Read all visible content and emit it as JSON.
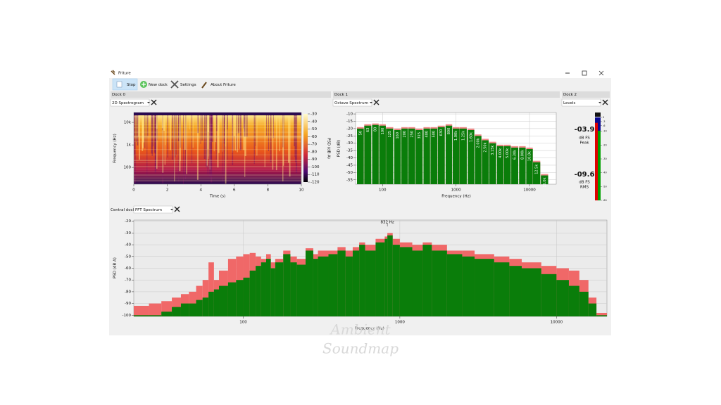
{
  "window": {
    "title": "Friture"
  },
  "toolbar": [
    "Stop",
    "New dock",
    "Settings",
    "About Friture"
  ],
  "dock0": {
    "title": "Dock 0",
    "view": "2D Spectrogram",
    "chart": {
      "type": "spectrogram",
      "xlabel": "Time (s)",
      "ylabel": "Frequency (Hz)",
      "xlim": [
        0,
        10
      ],
      "xticks": [
        0,
        2,
        4,
        6,
        8,
        10
      ],
      "ylim": [
        18,
        27500
      ],
      "ylog": true,
      "yticks": [
        {
          "value": 10000,
          "label": "10k"
        },
        {
          "value": 1000,
          "label": "1k"
        },
        100
      ],
      "colorbar": {
        "label": "PSD (dB A)",
        "lim": [
          -30,
          -120
        ],
        "ticks": [
          -30,
          -40,
          -50,
          -60,
          -70,
          -80,
          -90,
          -100,
          -110,
          -120
        ]
      }
    }
  },
  "dock1": {
    "title": "Dock 1",
    "view": "Octave Spectrum",
    "chart": {
      "type": "bar",
      "xlabel": "Frequency (Hz)",
      "ylabel": "PSD (dB)",
      "grid": true,
      "xlog": true,
      "xlim": [
        43,
        23100
      ],
      "xticks": [
        100,
        1000,
        10000
      ],
      "ylim": [
        -58,
        -9
      ],
      "yticks": [
        -10,
        -15,
        -20,
        -25,
        -30,
        -35,
        -40,
        -45,
        -50,
        -55
      ],
      "categories": [
        "50",
        "63",
        "80",
        "100",
        "125",
        "160",
        "200",
        "250",
        "315",
        "400",
        "500",
        "630",
        "800",
        "1.00k",
        "1.25k",
        "1.60k",
        "2.00k",
        "2.50k",
        "3.15k",
        "4.00k",
        "5.00k",
        "6.30k",
        "8.00k",
        "10.0k",
        "12.5k",
        "16.0k"
      ],
      "x": [
        50,
        63,
        80,
        100,
        125,
        160,
        200,
        250,
        315,
        400,
        500,
        630,
        800,
        1000,
        1250,
        1600,
        2000,
        2500,
        3150,
        4000,
        5000,
        6300,
        8000,
        10000,
        12500,
        16000
      ],
      "series": [
        {
          "color": "#f08a8a",
          "values": [
            -19,
            -17,
            -16.5,
            -17,
            -19,
            -20,
            -19,
            -19,
            -20,
            -19,
            -19,
            -18,
            -17,
            -19,
            -19,
            -20,
            -24,
            -27,
            -29,
            -31,
            -31,
            -32,
            -32,
            -33,
            -42,
            -51
          ]
        },
        {
          "color": "#0a7d0a",
          "values": [
            -20,
            -18,
            -17.5,
            -18,
            -20,
            -21,
            -20,
            -20,
            -21,
            -20,
            -20,
            -19,
            -18,
            -20,
            -20,
            -21,
            -25,
            -28,
            -30,
            -32,
            -32,
            -33,
            -33,
            -34,
            -43,
            -52
          ]
        }
      ]
    }
  },
  "dock2": {
    "title": "Dock 2",
    "view": "Levels",
    "levels": {
      "scale": {
        "lim": [
          0,
          -60
        ],
        "ticks": [
          0,
          -3,
          -6,
          -10,
          -20,
          -30,
          -40,
          -50,
          -60
        ]
      },
      "peak": {
        "value": -3.9,
        "value_label": "-03.9",
        "unit": "dB FS",
        "label": "Peak",
        "color": "#e00000"
      },
      "rms": {
        "value": -9.6,
        "value_label": "-09.6",
        "unit": "dB FS",
        "label": "RMS",
        "color": "#00a000"
      }
    }
  },
  "central": {
    "title": "Central dock",
    "view": "FFT Spectrum",
    "chart": {
      "type": "fft",
      "xlabel": "Frequency (Hz)",
      "ylabel": "PSD (dB A)",
      "grid": true,
      "xlog": true,
      "xlim": [
        20,
        21000
      ],
      "xticks": [
        100,
        1000,
        10000
      ],
      "ylim": [
        -101,
        -19
      ],
      "yticks": [
        -20,
        -30,
        -40,
        -50,
        -60,
        -70,
        -80,
        -90,
        -100
      ],
      "x": [
        20,
        25,
        30,
        35,
        40,
        45,
        50,
        55,
        60,
        65,
        70,
        80,
        90,
        100,
        110,
        120,
        130,
        140,
        150,
        160,
        180,
        200,
        220,
        250,
        280,
        300,
        350,
        400,
        450,
        500,
        550,
        600,
        700,
        800,
        832,
        900,
        1000,
        1200,
        1400,
        1600,
        2000,
        2500,
        3000,
        4000,
        5000,
        6000,
        8000,
        10000,
        12000,
        14000,
        16000,
        18000
      ],
      "series": [
        {
          "color": "#f06868",
          "values": [
            -92,
            -90,
            -88,
            -85,
            -82,
            -80,
            -75,
            -70,
            -55,
            -70,
            -62,
            -52,
            -50,
            -48,
            -47,
            -50,
            -52,
            -48,
            -55,
            -52,
            -45,
            -50,
            -52,
            -43,
            -48,
            -45,
            -45,
            -42,
            -45,
            -42,
            -38,
            -40,
            -35,
            -33,
            -30,
            -35,
            -38,
            -40,
            -38,
            -40,
            -45,
            -45,
            -48,
            -50,
            -52,
            -55,
            -58,
            -60,
            -62,
            -70,
            -85,
            -98
          ]
        },
        {
          "color": "#0a7d0a",
          "values": [
            -100,
            -100,
            -97,
            -93,
            -90,
            -90,
            -87,
            -85,
            -80,
            -78,
            -75,
            -72,
            -70,
            -68,
            -62,
            -58,
            -55,
            -52,
            -60,
            -55,
            -48,
            -55,
            -57,
            -45,
            -52,
            -50,
            -48,
            -45,
            -50,
            -45,
            -40,
            -45,
            -38,
            -35,
            -32,
            -40,
            -42,
            -45,
            -40,
            -45,
            -48,
            -50,
            -52,
            -55,
            -58,
            -60,
            -65,
            -70,
            -75,
            -80,
            -90,
            -100
          ]
        }
      ],
      "annotation": {
        "x": 832,
        "label": "832 Hz"
      }
    }
  },
  "watermark": [
    "Ambient",
    "Soundmap"
  ]
}
